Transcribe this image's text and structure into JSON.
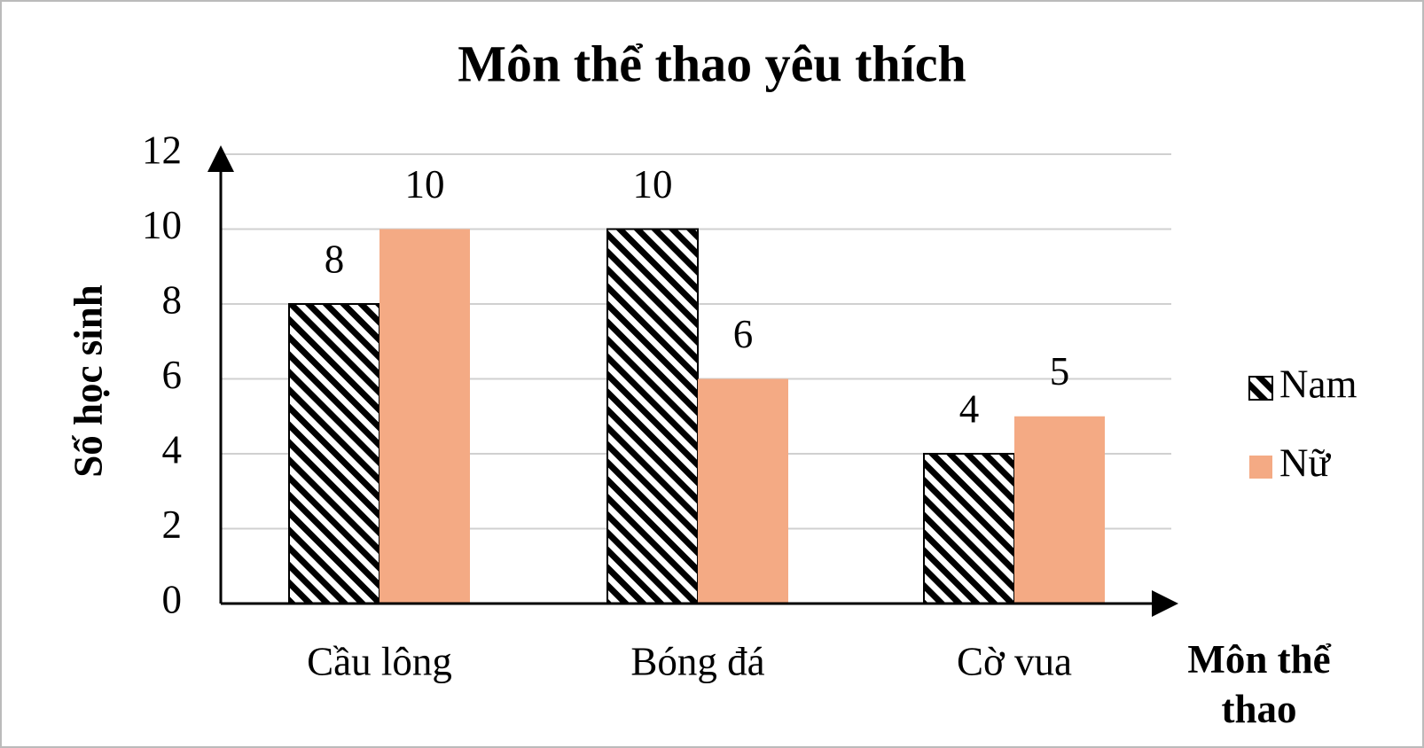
{
  "chart_data": {
    "type": "bar",
    "title": "Môn thể thao yêu thích",
    "x_label": "Môn thể thao",
    "y_label": "Số học sinh",
    "categories": [
      "Cầu lông",
      "Bóng đá",
      "Cờ vua"
    ],
    "series": [
      {
        "name": "Nam",
        "color": "#000000",
        "pattern": "diagonal-hatch",
        "values": [
          8,
          10,
          4
        ]
      },
      {
        "name": "Nữ",
        "color": "#f4aa84",
        "values": [
          10,
          6,
          5
        ]
      }
    ],
    "ylim": [
      0,
      12
    ],
    "yticks": [
      0,
      2,
      4,
      6,
      8,
      10,
      12
    ],
    "grid": true,
    "legend": "right"
  }
}
